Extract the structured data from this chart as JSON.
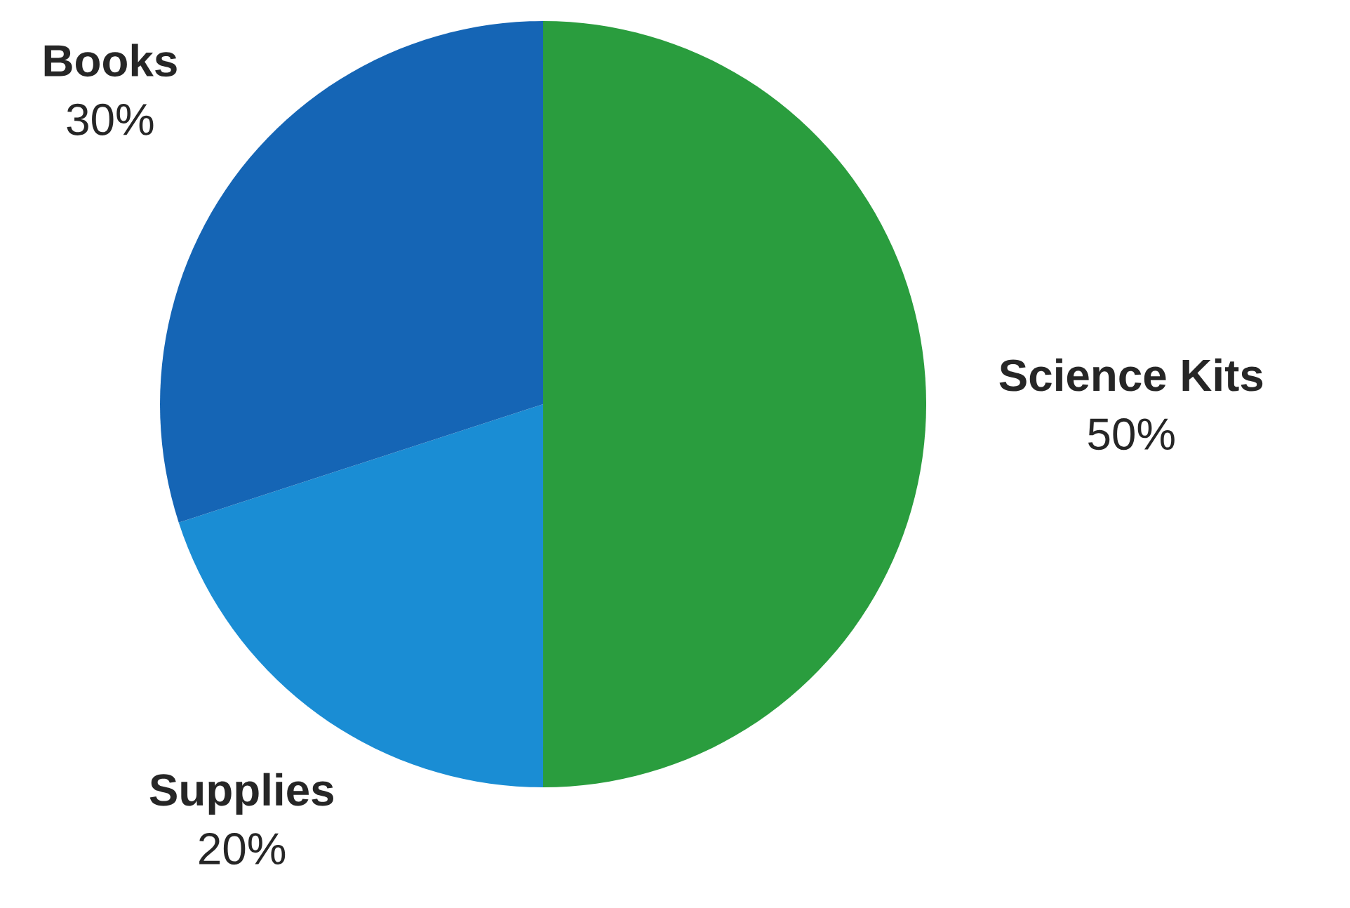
{
  "chart_data": {
    "type": "pie",
    "categories": [
      "Science Kits",
      "Supplies",
      "Books"
    ],
    "values": [
      50,
      20,
      30
    ],
    "colors": [
      "#2a9d3e",
      "#1a8dd4",
      "#1565b5"
    ],
    "value_labels": [
      "50%",
      "20%",
      "30%"
    ]
  }
}
